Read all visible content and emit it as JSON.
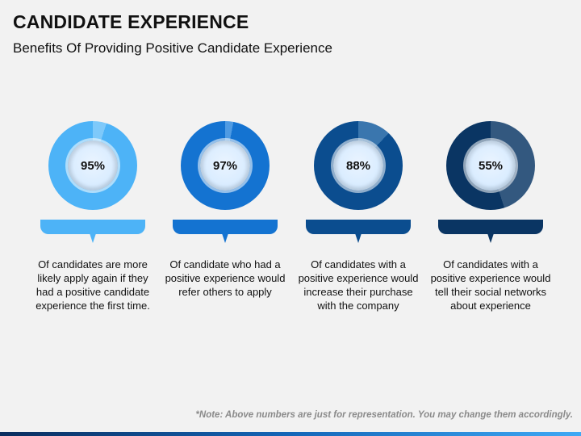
{
  "title": "CANDIDATE EXPERIENCE",
  "subtitle": "Benefits Of Providing Positive Candidate Experience",
  "cards": [
    {
      "percent_label": "95%",
      "value": 95,
      "description": "Of candidates are more likely apply again if they had a positive candidate experience the first time.",
      "color_main": "#4db3f7",
      "color_rest": "#7ec9fa",
      "color_band": "#4db3f7"
    },
    {
      "percent_label": "97%",
      "value": 97,
      "description": "Of candidate who had a positive experience would refer others to apply",
      "color_main": "#1473d1",
      "color_rest": "#4f9be3",
      "color_band": "#1473d1"
    },
    {
      "percent_label": "88%",
      "value": 88,
      "description": "Of candidates with a positive experience would increase their purchase with the company",
      "color_main": "#0b4d8f",
      "color_rest": "#3a76ae",
      "color_band": "#0b4d8f"
    },
    {
      "percent_label": "55%",
      "value": 55,
      "description": "Of candidates with a positive experience would tell their social networks about experience",
      "color_main": "#0a3563",
      "color_rest": "#33587f",
      "color_band": "#0a3563"
    }
  ],
  "note": "*Note: Above numbers are just for representation. You may change them accordingly."
}
